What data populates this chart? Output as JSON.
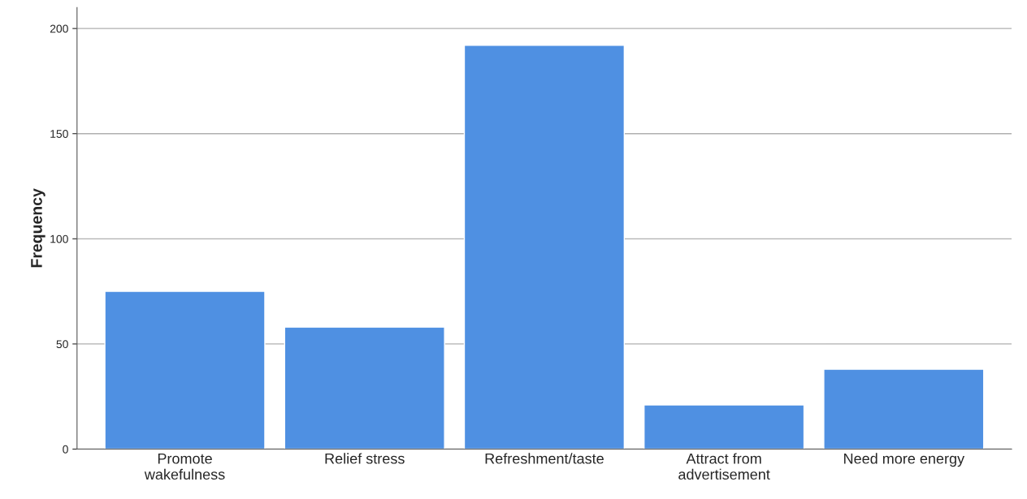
{
  "chart_data": {
    "type": "bar",
    "ylabel": "Frequency",
    "categories": [
      "Promote\nwakefulness",
      "Relief stress",
      "Refreshment/taste",
      "Attract from\nadvertisement",
      "Need more energy"
    ],
    "values": [
      75,
      58,
      192,
      21,
      38
    ],
    "color": "#4f90e2",
    "ylim": [
      0,
      210
    ],
    "yticks": [
      0,
      50,
      100,
      150,
      200
    ],
    "grid": "y",
    "legend": false
  }
}
